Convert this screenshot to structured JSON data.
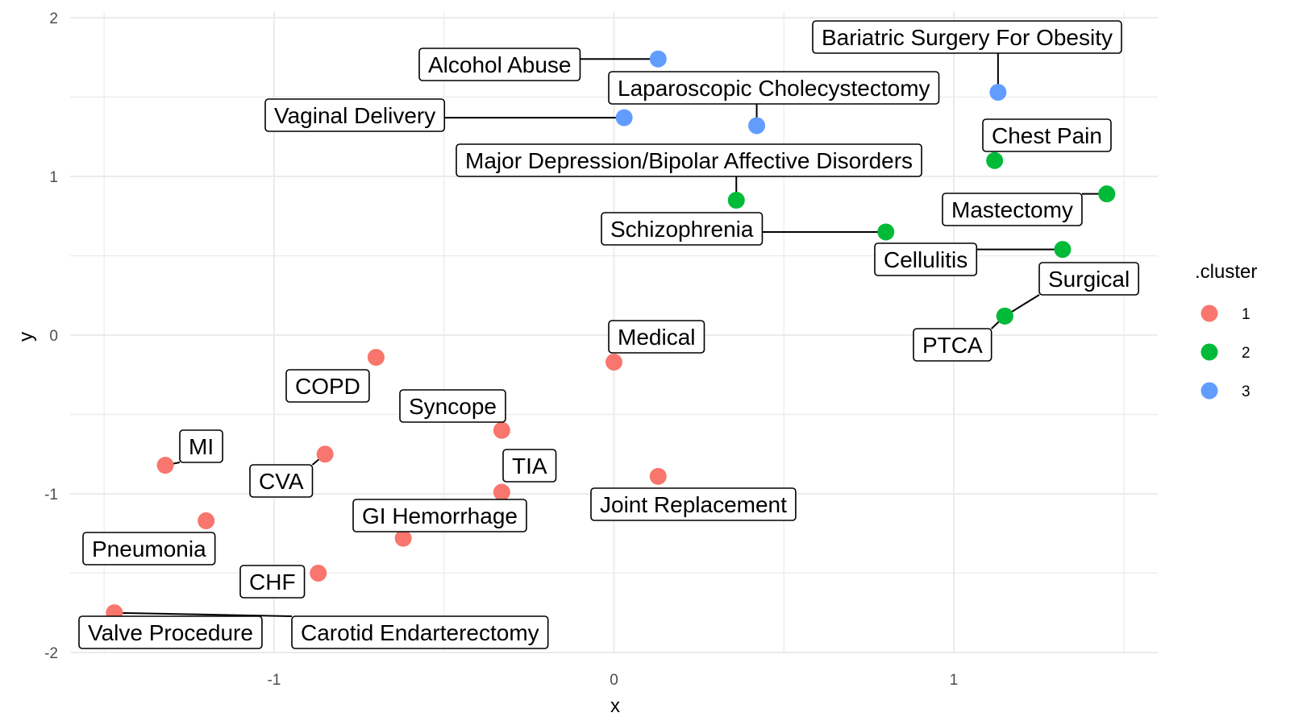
{
  "chart_data": {
    "type": "scatter",
    "xlabel": "x",
    "ylabel": "y",
    "xlim": [
      -1.6,
      1.6
    ],
    "ylim": [
      -2.0,
      2.0
    ],
    "x_ticks": [
      "-1",
      "0",
      "1"
    ],
    "x_tick_values": [
      -1,
      0,
      1
    ],
    "y_ticks": [
      "-2",
      "-1",
      "0",
      "1",
      "2"
    ],
    "y_tick_values": [
      -2,
      -1,
      0,
      1,
      2
    ],
    "grid": true,
    "legend": {
      "title": ".cluster",
      "position": "right",
      "entries": [
        {
          "label": "1",
          "color": "#F8766D"
        },
        {
          "label": "2",
          "color": "#00BA38"
        },
        {
          "label": "3",
          "color": "#619CFF"
        }
      ]
    },
    "points": [
      {
        "label": "Alcohol Abuse",
        "x": 0.13,
        "y": 1.74,
        "cluster": "3"
      },
      {
        "label": "Bariatric Surgery For Obesity",
        "x": 1.13,
        "y": 1.53,
        "cluster": "3"
      },
      {
        "label": "Laparoscopic Cholecystectomy",
        "x": 0.42,
        "y": 1.32,
        "cluster": "3"
      },
      {
        "label": "Vaginal Delivery",
        "x": 0.03,
        "y": 1.37,
        "cluster": "3"
      },
      {
        "label": "Major Depression/Bipolar Affective Disorders",
        "x": 0.36,
        "y": 0.85,
        "cluster": "2"
      },
      {
        "label": "Chest Pain",
        "x": 1.12,
        "y": 1.1,
        "cluster": "2"
      },
      {
        "label": "Mastectomy",
        "x": 1.45,
        "y": 0.89,
        "cluster": "2"
      },
      {
        "label": "Schizophrenia",
        "x": 0.8,
        "y": 0.65,
        "cluster": "2"
      },
      {
        "label": "Cellulitis",
        "x": 1.32,
        "y": 0.54,
        "cluster": "2"
      },
      {
        "label": "Surgical",
        "x": 1.15,
        "y": 0.12,
        "cluster": "2"
      },
      {
        "label": "PTCA",
        "x": 1.15,
        "y": 0.12,
        "cluster": "2"
      },
      {
        "label": "Medical",
        "x": 0.0,
        "y": -0.17,
        "cluster": "1"
      },
      {
        "label": "COPD",
        "x": -0.7,
        "y": -0.14,
        "cluster": "1"
      },
      {
        "label": "Syncope",
        "x": -0.33,
        "y": -0.6,
        "cluster": "1"
      },
      {
        "label": "MI",
        "x": -1.32,
        "y": -0.82,
        "cluster": "1"
      },
      {
        "label": "CVA",
        "x": -0.85,
        "y": -0.75,
        "cluster": "1"
      },
      {
        "label": "TIA",
        "x": -0.33,
        "y": -0.99,
        "cluster": "1"
      },
      {
        "label": "Joint Replacement",
        "x": 0.13,
        "y": -0.89,
        "cluster": "1"
      },
      {
        "label": "GI Hemorrhage",
        "x": -0.62,
        "y": -1.28,
        "cluster": "1"
      },
      {
        "label": "Pneumonia",
        "x": -1.2,
        "y": -1.17,
        "cluster": "1"
      },
      {
        "label": "CHF",
        "x": -0.87,
        "y": -1.5,
        "cluster": "1"
      },
      {
        "label": "Valve Procedure",
        "x": -1.47,
        "y": -1.75,
        "cluster": "1"
      },
      {
        "label": "Carotid Endarterectomy",
        "x": -1.47,
        "y": -1.75,
        "cluster": "1"
      }
    ]
  }
}
